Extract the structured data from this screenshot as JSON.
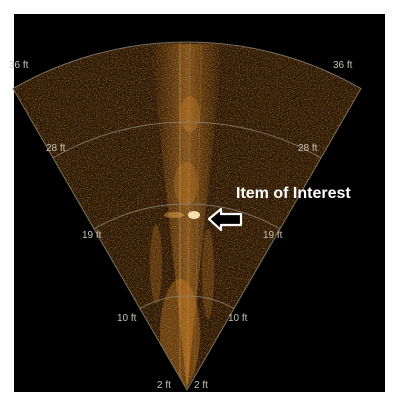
{
  "display": {
    "background": "#000000",
    "fan_color": "#2a1604",
    "echo_color": "#d88a2a",
    "highlight_color": "#fff0c0",
    "grid_color": "#8a8070"
  },
  "range_labels": {
    "apex_left": "2 ft",
    "apex_right": "2 ft",
    "ring_10_left": "10 ft",
    "ring_10_right": "10 ft",
    "ring_19_left": "19 ft",
    "ring_19_right": "19 ft",
    "ring_28_left": "28 ft",
    "ring_28_right": "28 ft",
    "ring_36_left": "36 ft",
    "ring_36_right": "36 ft"
  },
  "annotation": {
    "label": "Item of Interest",
    "icon": "left-arrow-icon"
  }
}
